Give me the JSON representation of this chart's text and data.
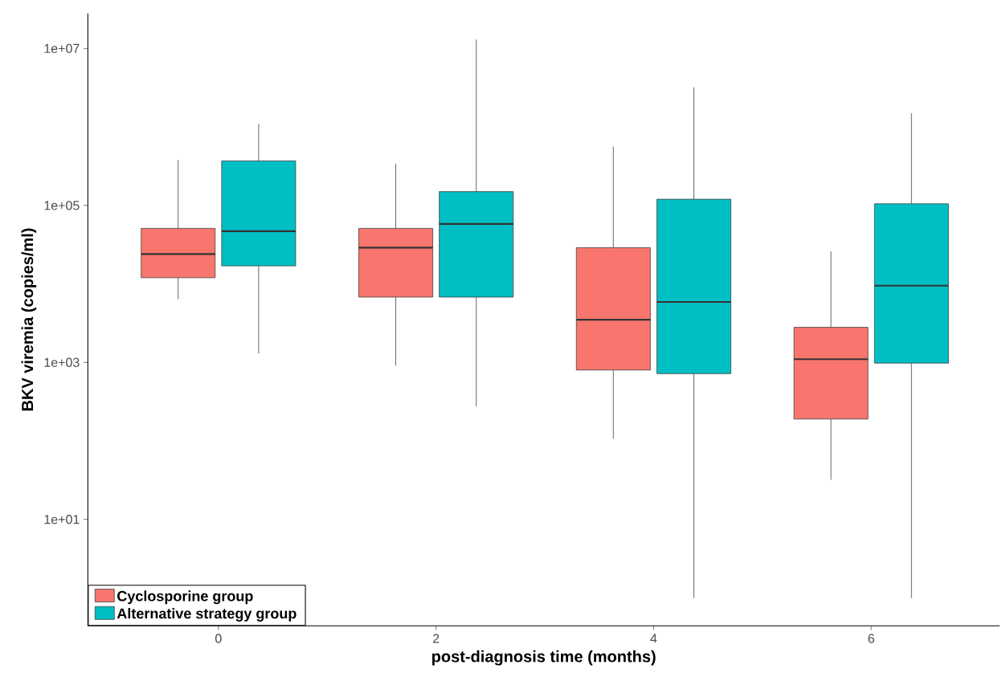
{
  "chart_data": {
    "type": "box",
    "xlabel": "post-diagnosis time (months)",
    "ylabel": "BKV viremia (copies/ml)",
    "categories": [
      "0",
      "2",
      "4",
      "6"
    ],
    "series": [
      {
        "name": "Cyclosporine group",
        "color": "#f8766d",
        "boxes": [
          {
            "low": 6400,
            "q1": 12000,
            "median": 24000,
            "q3": 51000,
            "high": 380000
          },
          {
            "low": 910,
            "q1": 6800,
            "median": 29000,
            "q3": 51000,
            "high": 340000
          },
          {
            "low": 107,
            "q1": 800,
            "median": 3500,
            "q3": 29000,
            "high": 560000
          },
          {
            "low": 32,
            "q1": 190,
            "median": 1100,
            "q3": 2800,
            "high": 26000
          }
        ]
      },
      {
        "name": "Alternative strategy group",
        "color": "#00bfc4",
        "boxes": [
          {
            "low": 1300,
            "q1": 17000,
            "median": 47000,
            "q3": 370000,
            "high": 1100000
          },
          {
            "low": 275,
            "q1": 6800,
            "median": 58000,
            "q3": 150000,
            "high": 13000000
          },
          {
            "low": 1,
            "q1": 720,
            "median": 5900,
            "q3": 120000,
            "high": 3200000
          },
          {
            "low": 1,
            "q1": 980,
            "median": 9500,
            "q3": 105000,
            "high": 1500000
          }
        ]
      }
    ],
    "log": "y",
    "ylim": [
      0.44,
      28000000
    ],
    "yticks": [
      {
        "value": 10,
        "label": "1e+01"
      },
      {
        "value": 1000,
        "label": "1e+03"
      },
      {
        "value": 100000,
        "label": "1e+05"
      },
      {
        "value": 10000000,
        "label": "1e+07"
      }
    ],
    "grid": false,
    "legend": "bottom left"
  }
}
